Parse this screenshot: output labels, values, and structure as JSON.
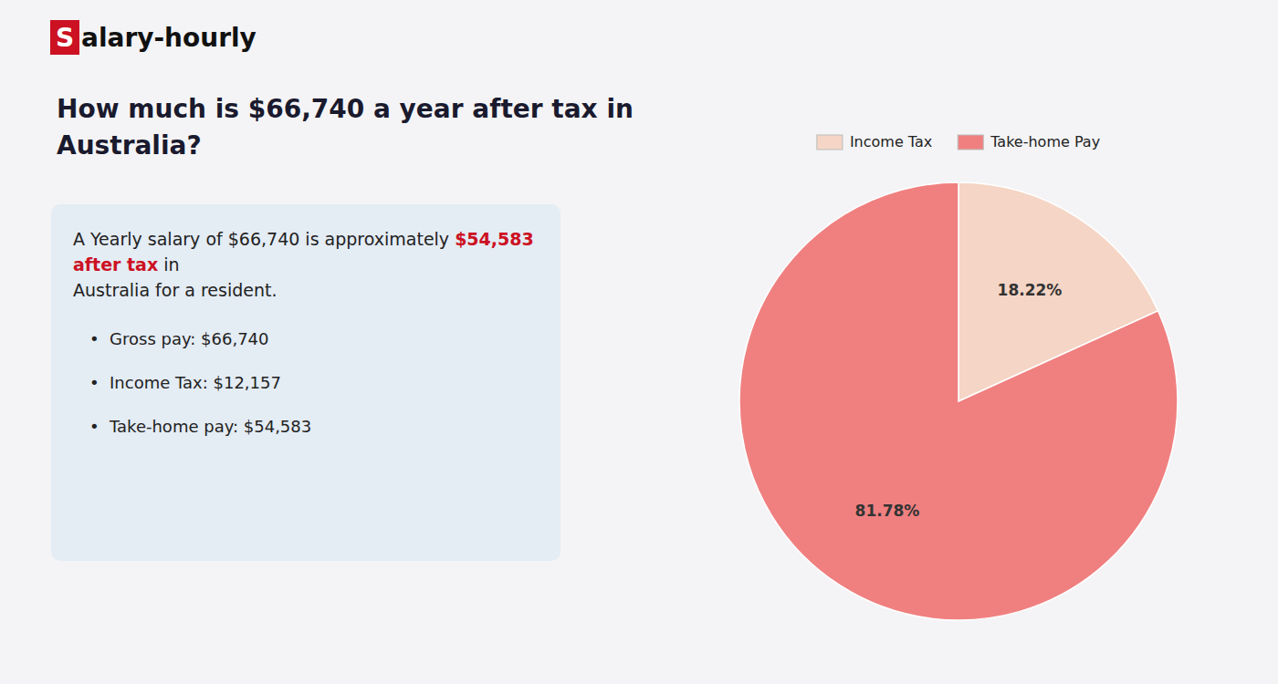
{
  "chart_data": {
    "type": "pie",
    "title": [
      "How much is $66,740 a year after tax in",
      "Australia?"
    ],
    "categories": [
      "Income Tax",
      "Take-home Pay"
    ],
    "values": [
      18.22,
      81.78
    ],
    "value_labels": [
      "18.22%",
      "81.78%"
    ],
    "colors": [
      "#f5d5c5",
      "#f08080"
    ],
    "data_labels": true,
    "legend": "top",
    "annotations": [
      {
        "text": "S"
      },
      {
        "text": "alary-hourly"
      },
      {
        "text": "A Yearly salary of $66,740 is approximately "
      },
      {
        "text": "$54,583 after tax",
        "color": "#cc1122"
      },
      {
        "text": " in"
      },
      {
        "text": "Australia for a resident."
      },
      {
        "text": "•  Gross pay: $66,740"
      },
      {
        "text": "•  Income Tax: $12,157"
      },
      {
        "text": "•  Take-home pay: $54,583"
      }
    ]
  }
}
